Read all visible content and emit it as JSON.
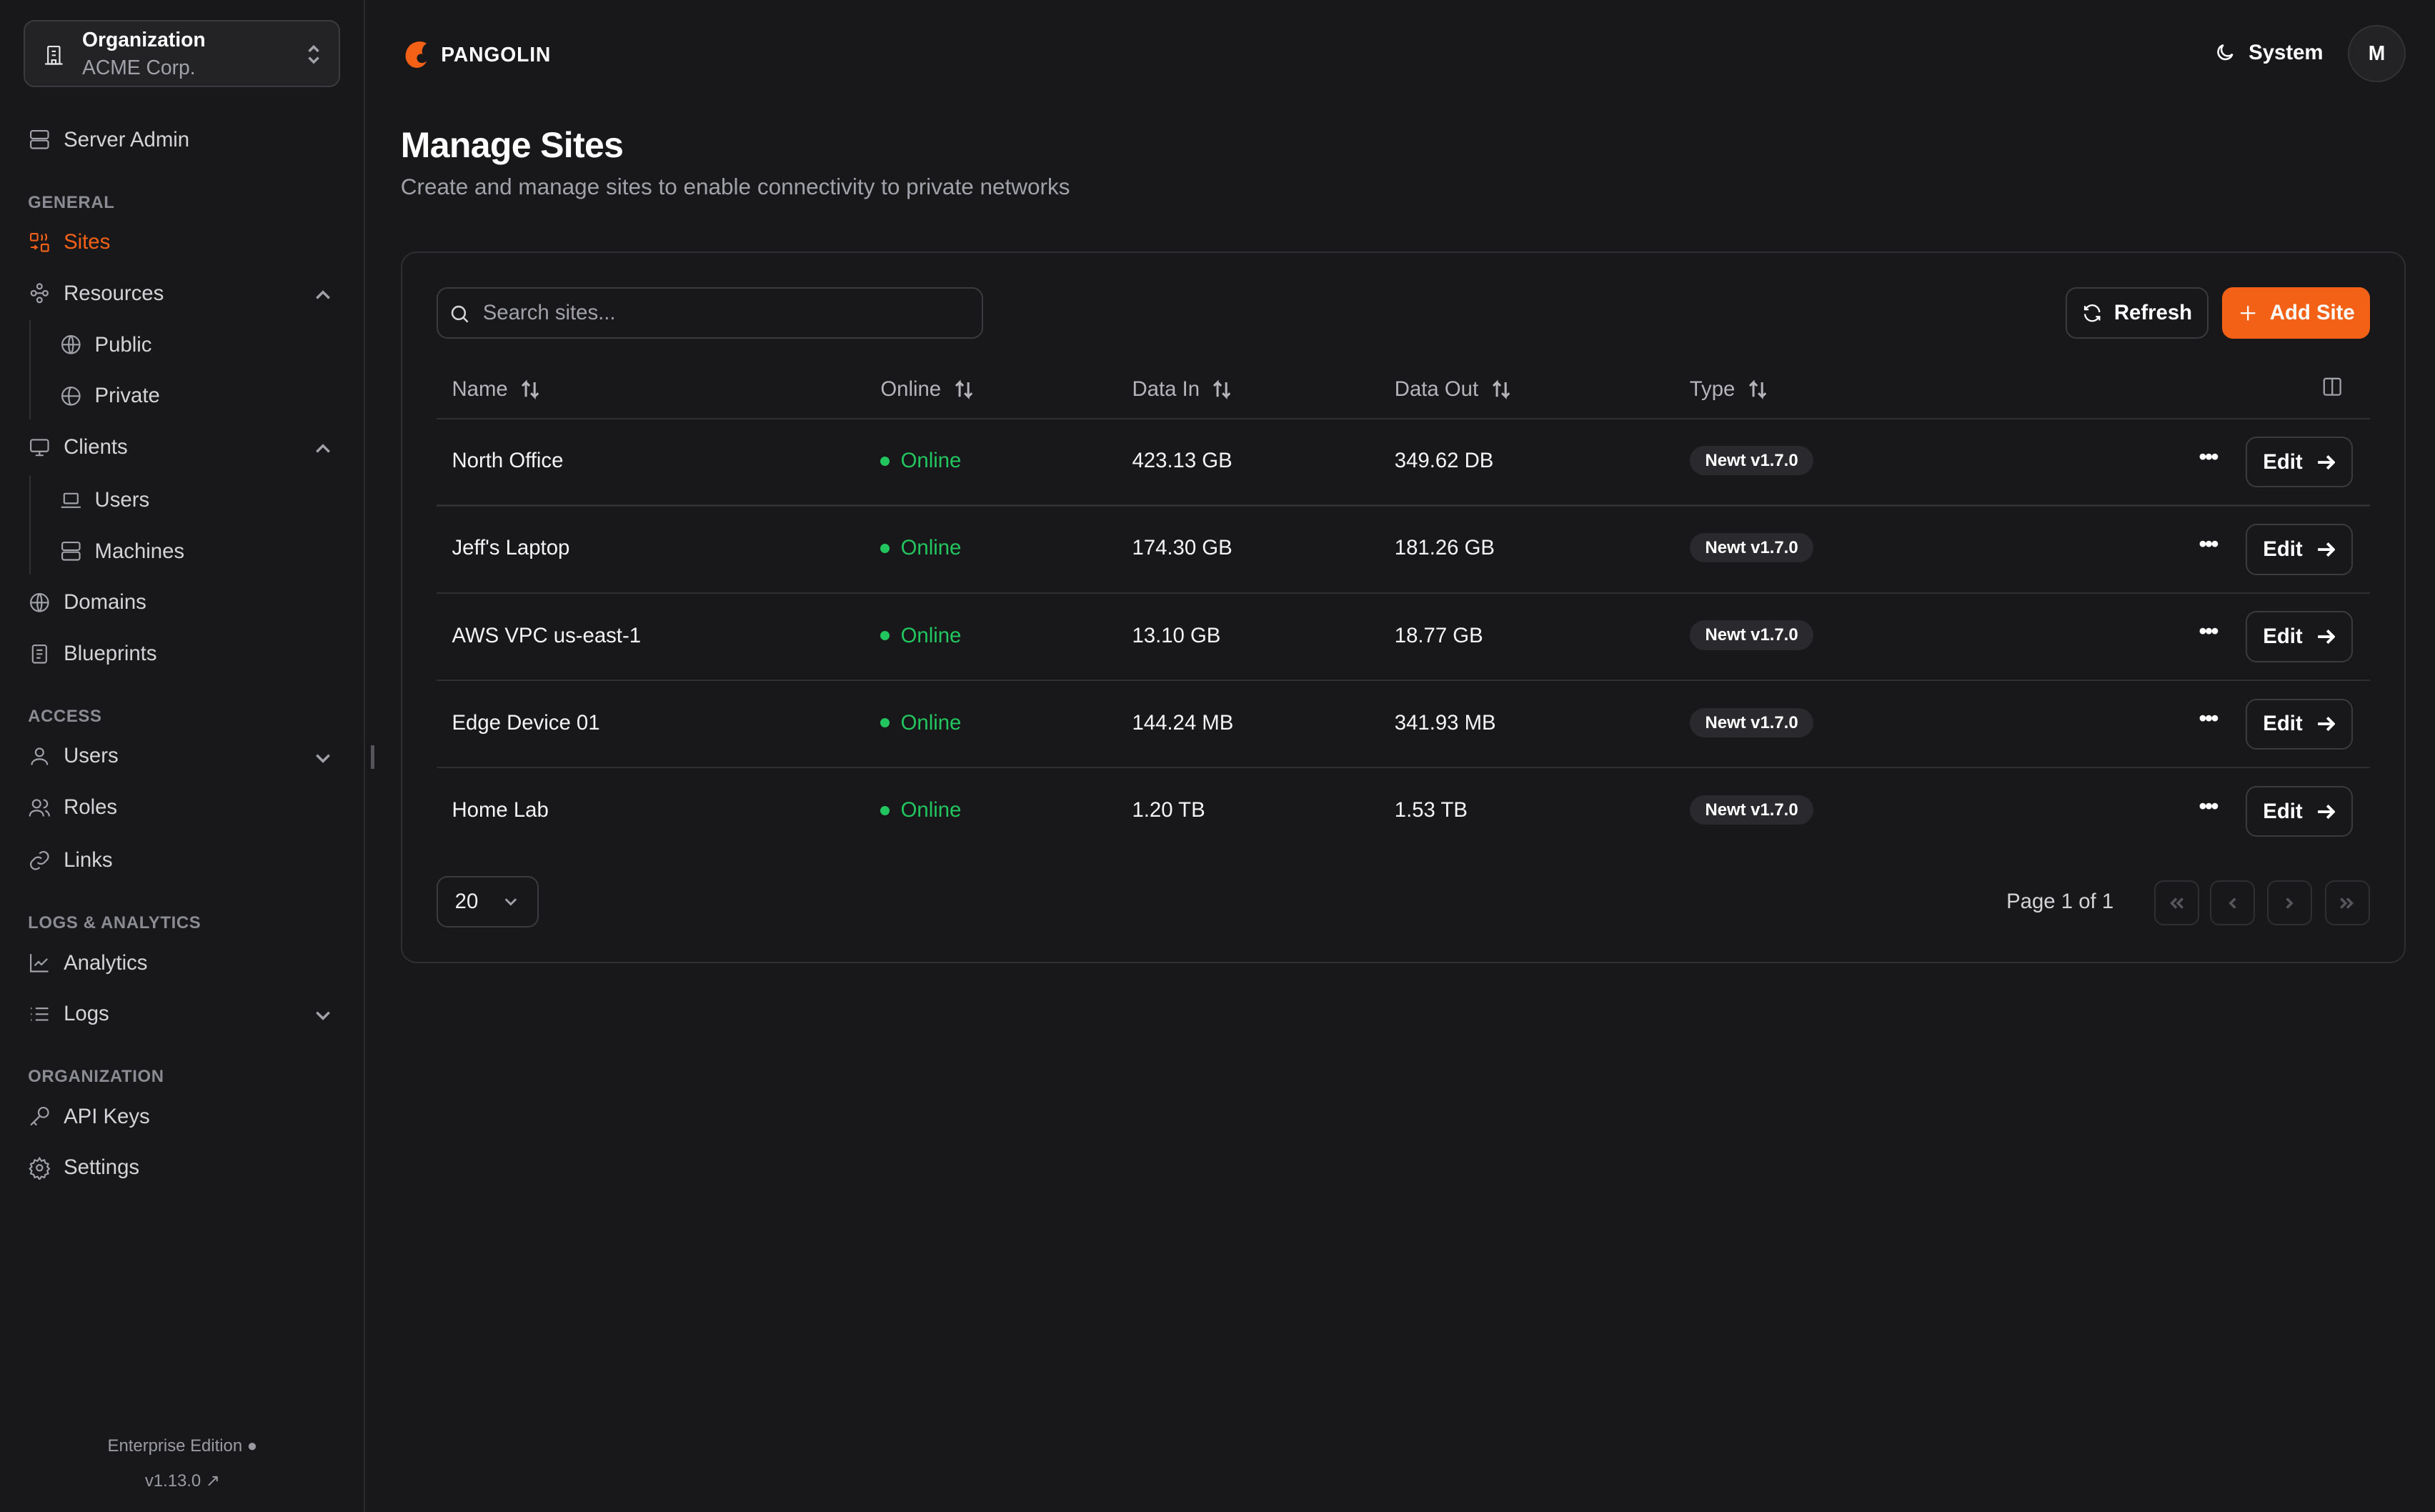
{
  "org": {
    "label": "Organization",
    "name": "ACME Corp."
  },
  "sidebar": {
    "server_admin": "Server Admin",
    "sections": {
      "general": "GENERAL",
      "access": "ACCESS",
      "logs": "LOGS & ANALYTICS",
      "organization": "ORGANIZATION"
    },
    "items": {
      "sites": "Sites",
      "resources": "Resources",
      "public": "Public",
      "private": "Private",
      "clients": "Clients",
      "users_client": "Users",
      "machines": "Machines",
      "domains": "Domains",
      "blueprints": "Blueprints",
      "users": "Users",
      "roles": "Roles",
      "links": "Links",
      "analytics": "Analytics",
      "logs": "Logs",
      "api_keys": "API Keys",
      "settings": "Settings"
    },
    "footer": {
      "edition": "Enterprise Edition",
      "version": "v1.13.0"
    }
  },
  "header": {
    "brand": "PANGOLIN",
    "theme": "System",
    "avatar": "M"
  },
  "page": {
    "title": "Manage Sites",
    "subtitle": "Create and manage sites to enable connectivity to private networks"
  },
  "toolbar": {
    "search_placeholder": "Search sites...",
    "refresh": "Refresh",
    "add": "Add Site"
  },
  "table": {
    "columns": [
      "Name",
      "Online",
      "Data In",
      "Data Out",
      "Type"
    ],
    "rows": [
      {
        "name": "North Office",
        "online": "Online",
        "data_in": "423.13 GB",
        "data_out": "349.62 DB",
        "type": "Newt v1.7.0",
        "action": "Edit"
      },
      {
        "name": "Jeff's Laptop",
        "online": "Online",
        "data_in": "174.30 GB",
        "data_out": "181.26 GB",
        "type": "Newt v1.7.0",
        "action": "Edit"
      },
      {
        "name": "AWS VPC us-east-1",
        "online": "Online",
        "data_in": "13.10 GB",
        "data_out": "18.77 GB",
        "type": "Newt v1.7.0",
        "action": "Edit"
      },
      {
        "name": "Edge Device 01",
        "online": "Online",
        "data_in": "144.24 MB",
        "data_out": "341.93 MB",
        "type": "Newt v1.7.0",
        "action": "Edit"
      },
      {
        "name": "Home Lab",
        "online": "Online",
        "data_in": "1.20 TB",
        "data_out": "1.53 TB",
        "type": "Newt v1.7.0",
        "action": "Edit"
      }
    ]
  },
  "pagination": {
    "page_size": "20",
    "page_text": "Page 1 of 1"
  },
  "colors": {
    "accent": "#f36117",
    "online": "#22c55e",
    "background": "#18181b"
  }
}
